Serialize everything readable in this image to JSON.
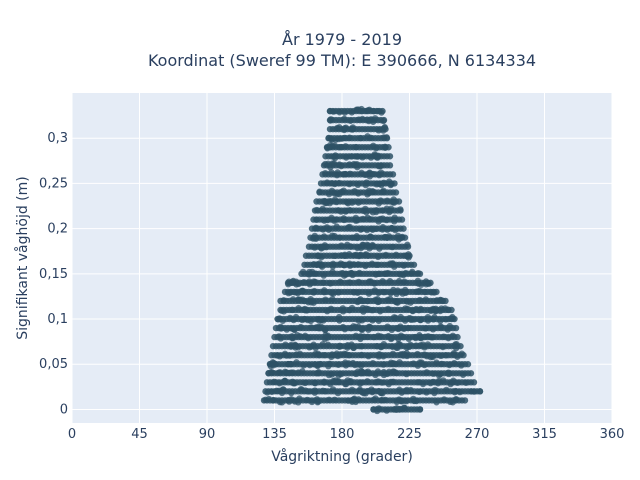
{
  "chart_data": {
    "type": "scatter",
    "title": "År 1979 - 2019",
    "subtitle": "Koordinat (Sweref 99 TM): E 390666, N 6134334",
    "xlabel": "Vågriktning (grader)",
    "ylabel": "Signifikant våghöjd (m)",
    "xlim": [
      0,
      360
    ],
    "ylim": [
      -0.015,
      0.35
    ],
    "xticks": [
      0,
      45,
      90,
      135,
      180,
      225,
      270,
      315,
      360
    ],
    "xtick_labels": [
      "0",
      "45",
      "90",
      "135",
      "180",
      "225",
      "270",
      "315",
      "360"
    ],
    "yticks": [
      0,
      0.05,
      0.1,
      0.15,
      0.2,
      0.25,
      0.3
    ],
    "ytick_labels": [
      "0",
      "0,05",
      "0,1",
      "0,15",
      "0,2",
      "0,25",
      "0,3"
    ],
    "grid": true,
    "point_color": "#2e5266",
    "plot_bg": "#e5ecf6",
    "envelope": [
      {
        "height": 0.0,
        "dir_min": 201,
        "dir_max": 232
      },
      {
        "height": 0.01,
        "dir_min": 128,
        "dir_max": 262
      },
      {
        "height": 0.02,
        "dir_min": 129,
        "dir_max": 272
      },
      {
        "height": 0.03,
        "dir_min": 130,
        "dir_max": 268
      },
      {
        "height": 0.04,
        "dir_min": 131,
        "dir_max": 266
      },
      {
        "height": 0.05,
        "dir_min": 132,
        "dir_max": 264
      },
      {
        "height": 0.06,
        "dir_min": 133,
        "dir_max": 261
      },
      {
        "height": 0.07,
        "dir_min": 134,
        "dir_max": 259
      },
      {
        "height": 0.08,
        "dir_min": 135,
        "dir_max": 257
      },
      {
        "height": 0.09,
        "dir_min": 136,
        "dir_max": 256
      },
      {
        "height": 0.1,
        "dir_min": 137,
        "dir_max": 255
      },
      {
        "height": 0.11,
        "dir_min": 139,
        "dir_max": 253
      },
      {
        "height": 0.12,
        "dir_min": 139,
        "dir_max": 249
      },
      {
        "height": 0.13,
        "dir_min": 142,
        "dir_max": 243
      },
      {
        "height": 0.14,
        "dir_min": 144,
        "dir_max": 239
      },
      {
        "height": 0.15,
        "dir_min": 153,
        "dir_max": 232
      },
      {
        "height": 0.16,
        "dir_min": 155,
        "dir_max": 228
      },
      {
        "height": 0.17,
        "dir_min": 156,
        "dir_max": 225
      },
      {
        "height": 0.18,
        "dir_min": 158,
        "dir_max": 224
      },
      {
        "height": 0.19,
        "dir_min": 159,
        "dir_max": 222
      },
      {
        "height": 0.2,
        "dir_min": 160,
        "dir_max": 221
      },
      {
        "height": 0.21,
        "dir_min": 161,
        "dir_max": 220
      },
      {
        "height": 0.22,
        "dir_min": 162,
        "dir_max": 219
      },
      {
        "height": 0.23,
        "dir_min": 163,
        "dir_max": 218
      },
      {
        "height": 0.24,
        "dir_min": 165,
        "dir_max": 216
      },
      {
        "height": 0.25,
        "dir_min": 166,
        "dir_max": 215
      },
      {
        "height": 0.26,
        "dir_min": 167,
        "dir_max": 214
      },
      {
        "height": 0.27,
        "dir_min": 168,
        "dir_max": 212
      },
      {
        "height": 0.28,
        "dir_min": 169,
        "dir_max": 212
      },
      {
        "height": 0.29,
        "dir_min": 170,
        "dir_max": 211
      },
      {
        "height": 0.3,
        "dir_min": 171,
        "dir_max": 210
      },
      {
        "height": 0.31,
        "dir_min": 172,
        "dir_max": 209
      },
      {
        "height": 0.32,
        "dir_min": 172,
        "dir_max": 208
      },
      {
        "height": 0.33,
        "dir_min": 172,
        "dir_max": 207
      }
    ],
    "outliers": [
      {
        "x": 134,
        "y": 0.01
      },
      {
        "x": 201,
        "y": 0.0
      },
      {
        "x": 218,
        "y": 0.0
      },
      {
        "x": 232,
        "y": 0.0
      },
      {
        "x": 272,
        "y": 0.02
      },
      {
        "x": 172,
        "y": 0.33
      },
      {
        "x": 193,
        "y": 0.33
      },
      {
        "x": 201,
        "y": 0.33
      },
      {
        "x": 204,
        "y": 0.33
      }
    ]
  }
}
